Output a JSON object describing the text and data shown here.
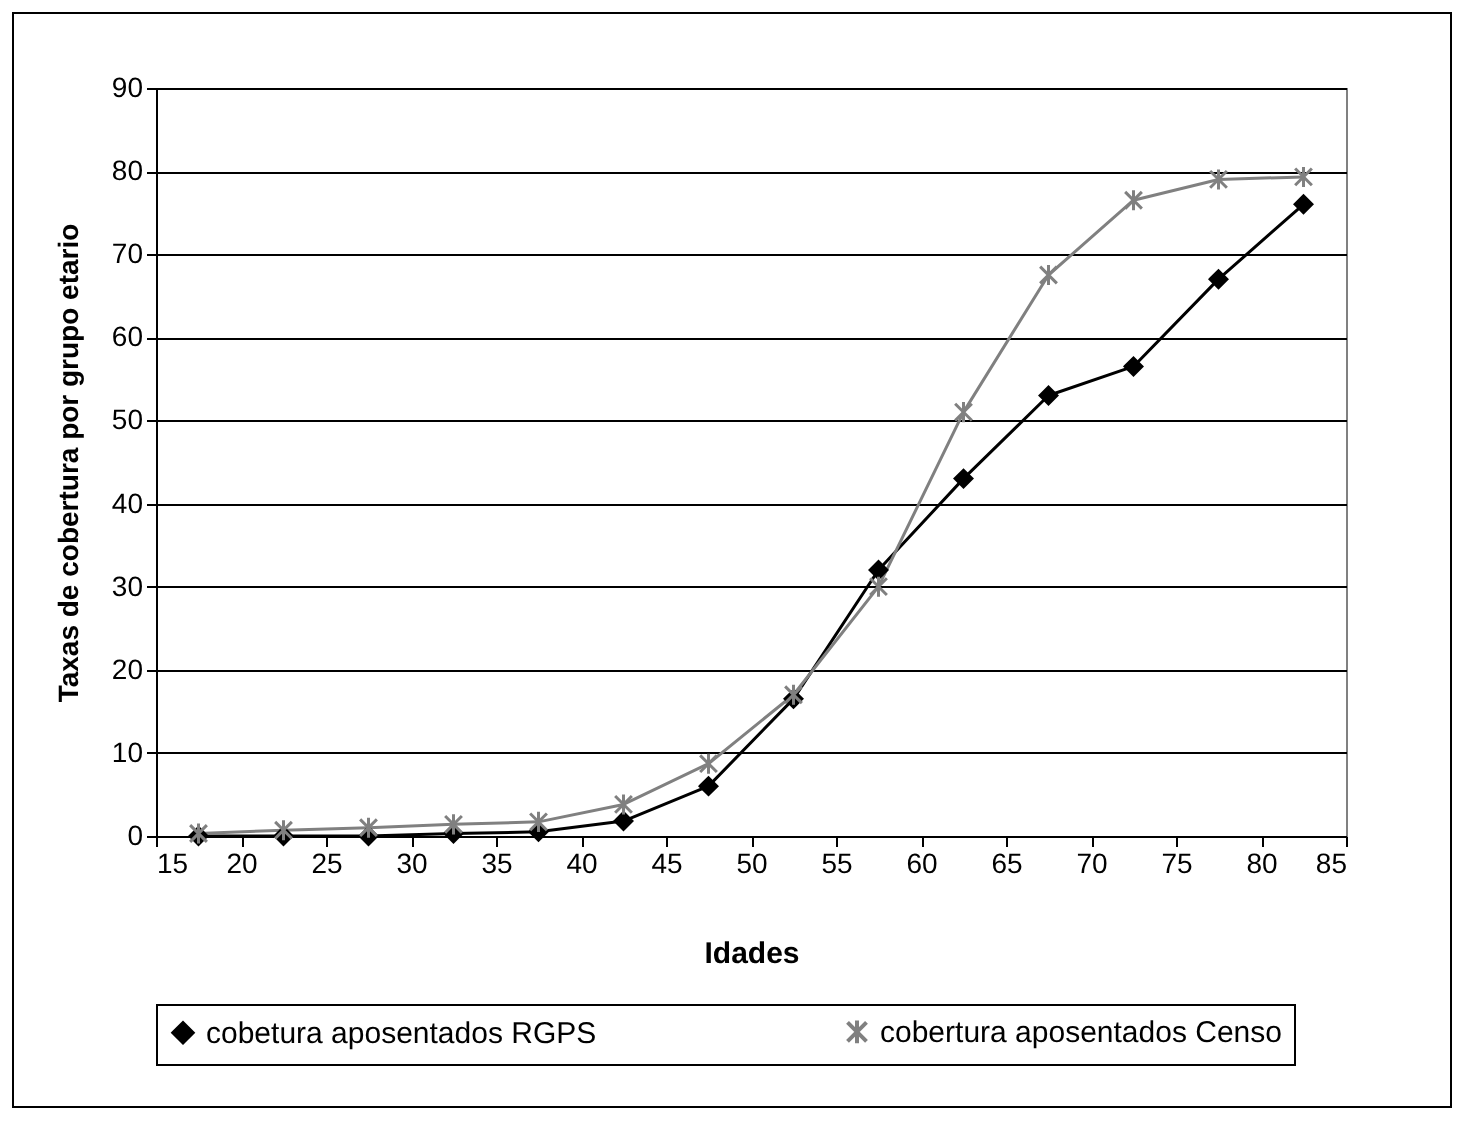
{
  "chart_data": {
    "type": "line",
    "xlabel": "Idades",
    "ylabel": "Taxas de cobertura por  grupo etario",
    "x": [
      17.5,
      22.5,
      27.5,
      32.5,
      37.5,
      42.5,
      47.5,
      52.5,
      57.5,
      62.5,
      67.5,
      72.5,
      77.5,
      82.5
    ],
    "series": [
      {
        "name": "cobetura aposentados RGPS",
        "color": "#000000",
        "marker": "diamond",
        "values": [
          0,
          0,
          0,
          0.3,
          0.5,
          1.8,
          6,
          16.5,
          32,
          43,
          53,
          56.5,
          67,
          76
        ]
      },
      {
        "name": "cobertura aposentados Censo",
        "color": "#808080",
        "marker": "cross",
        "values": [
          0.3,
          0.7,
          1,
          1.4,
          1.7,
          3.8,
          8.7,
          17,
          30,
          51,
          67.5,
          76.5,
          79,
          79.3
        ]
      }
    ],
    "xlim": [
      15,
      85
    ],
    "xticks": [
      15,
      20,
      25,
      30,
      35,
      40,
      45,
      50,
      55,
      60,
      65,
      70,
      75,
      80,
      85
    ],
    "ylim": [
      0,
      90
    ],
    "yticks": [
      0,
      10,
      20,
      30,
      40,
      50,
      60,
      70,
      80,
      90
    ],
    "grid": "y",
    "legend": "bottom",
    "line_style": "solid"
  }
}
